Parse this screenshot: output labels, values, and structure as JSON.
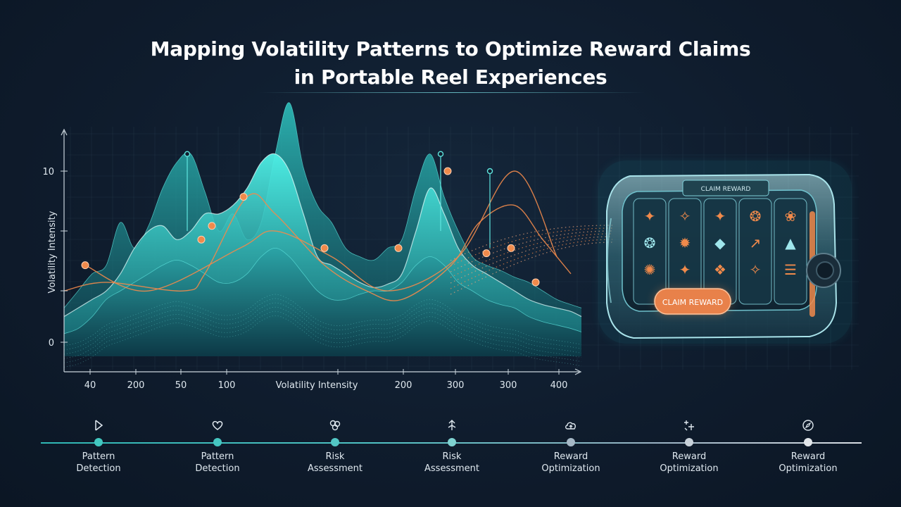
{
  "title_line1": "Mapping Volatility Patterns to Optimize Reward Claims",
  "title_line2": "in Portable Reel Experiences",
  "chart_data": {
    "type": "area",
    "title": "Mapping Volatility Patterns to Optimize Reward Claims in Portable Reel Experiences",
    "ylabel": "Volatility Intensity",
    "xlabel": "Volatility Intensity",
    "x_tick_labels": [
      "40",
      "200",
      "50",
      "100",
      "200",
      "300",
      "300",
      "400"
    ],
    "y_tick_labels": [
      "10",
      "0"
    ],
    "ylim": [
      -1.5,
      13
    ],
    "x": [
      0,
      20,
      40,
      60,
      80,
      100,
      120,
      140,
      160,
      180,
      200,
      220,
      240,
      260,
      280,
      300,
      320,
      340,
      360,
      380,
      400,
      420,
      440,
      460,
      480,
      500,
      520,
      540,
      560,
      580,
      600,
      620,
      640,
      660,
      680,
      700,
      720,
      735
    ],
    "series": [
      {
        "name": "",
        "values": [
          2,
          3,
          4,
          4.5,
          7,
          5.5,
          6.8,
          9,
          10.5,
          11,
          8.8,
          6.5,
          7.5,
          6,
          7,
          11,
          14,
          10.2,
          8,
          7,
          5.5,
          5,
          4.8,
          5.5,
          6,
          9,
          11,
          8.5,
          6.5,
          5,
          4.5,
          4.2,
          3.8,
          3.5,
          3,
          2.5,
          2.2,
          2
        ]
      },
      {
        "name": "",
        "values": [
          1.5,
          2,
          2.5,
          3,
          4,
          5.5,
          6.5,
          6.8,
          6,
          6.5,
          7.5,
          7.5,
          8,
          9,
          10.5,
          11,
          10,
          7.5,
          5,
          4.5,
          4,
          3.5,
          3.2,
          3.4,
          4,
          6.5,
          9,
          7.5,
          5.5,
          4.5,
          4,
          3.5,
          3,
          2.5,
          2.2,
          2,
          1.8,
          1.5
        ]
      },
      {
        "name": "",
        "values": [
          0.5,
          0.8,
          1.5,
          2.5,
          3,
          3.5,
          4,
          4.5,
          4.8,
          4.5,
          4,
          3.5,
          3.5,
          4,
          5,
          5.5,
          5,
          4,
          3,
          2.5,
          2.5,
          2.8,
          3,
          3,
          3.5,
          4.5,
          5,
          4.5,
          3.5,
          3,
          2.5,
          2.2,
          2,
          1.5,
          1.2,
          1,
          0.8,
          0.6
        ]
      }
    ],
    "orange_curve_1": {
      "x": [
        30,
        120,
        250,
        300,
        380,
        460,
        560,
        640,
        700
      ],
      "y": [
        4.5,
        3,
        5.5,
        6.5,
        5,
        3,
        5,
        10,
        5
      ]
    },
    "orange_curve_2": {
      "x": [
        0,
        60,
        170,
        200,
        260,
        300,
        370,
        430,
        480,
        550,
        590,
        640,
        680,
        720
      ],
      "y": [
        3,
        3.5,
        3,
        4,
        8.5,
        7.5,
        4.5,
        3,
        2.5,
        4.5,
        7,
        8,
        6,
        4
      ]
    },
    "orange_markers": [
      {
        "x": 30,
        "y": 4.5
      },
      {
        "x": 255,
        "y": 8.5
      },
      {
        "x": 210,
        "y": 6.8
      },
      {
        "x": 195,
        "y": 6
      },
      {
        "x": 370,
        "y": 5.5
      },
      {
        "x": 475,
        "y": 5.5
      },
      {
        "x": 545,
        "y": 10
      },
      {
        "x": 600,
        "y": 5.2
      },
      {
        "x": 635,
        "y": 5.5
      },
      {
        "x": 670,
        "y": 3.5
      }
    ],
    "pin_markers": [
      {
        "x": 175,
        "y": 11
      },
      {
        "x": 535,
        "y": 11
      },
      {
        "x": 605,
        "y": 10
      }
    ],
    "grid": true,
    "colors": {
      "teal": "#3fe0d9",
      "teal_dark": "#1d7f86",
      "orange": "#f08a4b"
    }
  },
  "reel": {
    "top_label": "CLAIM REWARD",
    "button_label": "CLAIM REWARD",
    "accent": "#f08a4b",
    "glass": "#9fd6df"
  },
  "timeline": {
    "steps": [
      {
        "label_line1": "Pattern",
        "label_line2": "Detection",
        "icon": "play-icon",
        "dot": "#42c7c0"
      },
      {
        "label_line1": "Pattern",
        "label_line2": "Detection",
        "icon": "heart-icon",
        "dot": "#45c6c1"
      },
      {
        "label_line1": "Risk",
        "label_line2": "Assessment",
        "icon": "gear-cluster-icon",
        "dot": "#52c6c4"
      },
      {
        "label_line1": "Risk",
        "label_line2": "Assessment",
        "icon": "arrows-icon",
        "dot": "#7fd2d1"
      },
      {
        "label_line1": "Reward",
        "label_line2": "Optimization",
        "icon": "cloud-up-icon",
        "dot": "#a6b8c6"
      },
      {
        "label_line1": "Reward",
        "label_line2": "Optimization",
        "icon": "sparkle-icon",
        "dot": "#c8d1da"
      },
      {
        "label_line1": "Reward",
        "label_line2": "Optimization",
        "icon": "compass-icon",
        "dot": "#e2e6ea"
      }
    ]
  }
}
